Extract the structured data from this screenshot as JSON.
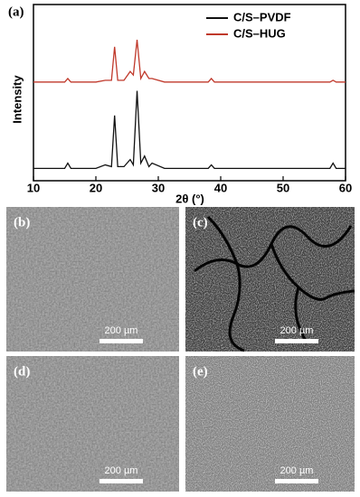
{
  "chart_data": {
    "type": "line",
    "panel_label": "(a)",
    "x_label": "2θ (°)",
    "y_label": "Intensity",
    "x": [
      10,
      12,
      15,
      15.5,
      16,
      20,
      21.5,
      22.5,
      23,
      23.5,
      24.5,
      25.5,
      26,
      26.6,
      27.2,
      27.8,
      28.5,
      29,
      31,
      33,
      35,
      38,
      38.5,
      39,
      42,
      45,
      50,
      55,
      57.5,
      58,
      58.5,
      60
    ],
    "series": [
      {
        "name": "C/S–PVDF",
        "color": "#111111",
        "values": [
          7,
          7,
          7,
          10,
          7,
          7,
          9,
          8,
          37,
          8,
          8,
          12,
          9,
          51,
          10,
          14,
          8,
          10,
          7,
          7,
          7,
          7,
          9,
          7,
          7,
          7,
          7,
          7,
          7,
          10,
          7,
          7
        ]
      },
      {
        "name": "C/S–HUG",
        "color": "#c0392b",
        "values": [
          56,
          56,
          56,
          58,
          56,
          56,
          57,
          57,
          76,
          57,
          57,
          62,
          60,
          80,
          58,
          62,
          58,
          58,
          56,
          56,
          56,
          56,
          58,
          56,
          56,
          56,
          56,
          56,
          56,
          57,
          56,
          56
        ]
      }
    ],
    "xlim": [
      10,
      60
    ],
    "xticks": [
      10,
      20,
      30,
      40,
      50,
      60
    ],
    "ylim": [
      0,
      100
    ]
  },
  "panels": [
    {
      "label": "(b)",
      "scale": "200 µm"
    },
    {
      "label": "(c)",
      "scale": "200 µm"
    },
    {
      "label": "(d)",
      "scale": "200 µm"
    },
    {
      "label": "(e)",
      "scale": "200 µm"
    }
  ]
}
